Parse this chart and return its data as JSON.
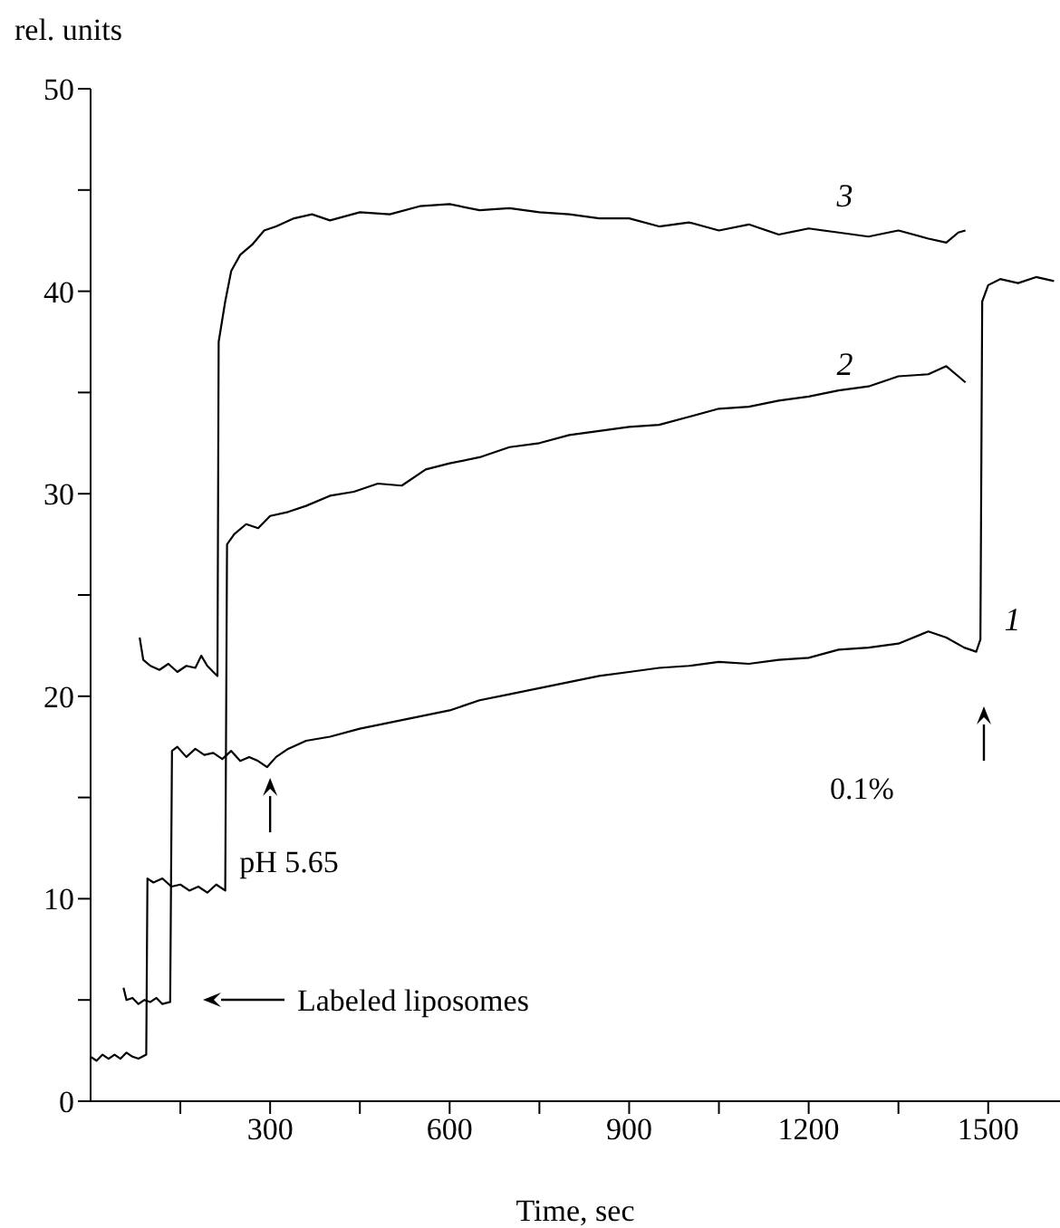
{
  "chart_data": {
    "type": "line",
    "xlabel": "Time, sec",
    "ylabel": "rel. units",
    "xlim": [
      0,
      1620
    ],
    "ylim": [
      0,
      50
    ],
    "xticks": [
      {
        "value": 150,
        "label": null
      },
      300,
      {
        "value": 450,
        "label": null
      },
      600,
      {
        "value": 750,
        "label": null
      },
      900,
      {
        "value": 1050,
        "label": null
      },
      1200,
      {
        "value": 1350,
        "label": null
      },
      1500
    ],
    "yticks": [
      0,
      {
        "value": 5,
        "label": null
      },
      10,
      {
        "value": 15,
        "label": null
      },
      20,
      {
        "value": 25,
        "label": null
      },
      30,
      {
        "value": 35,
        "label": null
      },
      40,
      {
        "value": 45,
        "label": null
      },
      50
    ],
    "grid": false,
    "legend": false,
    "annotations": [
      {
        "text": "pH 5.65",
        "x": 300,
        "y": 16.5
      },
      "Labeled liposomes",
      "0.1%"
    ],
    "series": [
      {
        "name": "1",
        "color": "#000000",
        "x": [
          55,
          60,
          70,
          80,
          90,
          100,
          110,
          120,
          133,
          136,
          145,
          160,
          175,
          190,
          205,
          220,
          235,
          250,
          265,
          280,
          295,
          310,
          330,
          360,
          400,
          450,
          500,
          550,
          600,
          650,
          700,
          750,
          800,
          850,
          900,
          950,
          1000,
          1050,
          1100,
          1150,
          1200,
          1250,
          1300,
          1350,
          1400,
          1430,
          1460,
          1480,
          1487,
          1490,
          1500,
          1520,
          1550,
          1580,
          1610
        ],
        "values": [
          5.6,
          5.0,
          5.1,
          4.8,
          5.0,
          4.9,
          5.1,
          4.8,
          4.9,
          17.3,
          17.5,
          17.0,
          17.4,
          17.1,
          17.2,
          16.9,
          17.3,
          16.8,
          17.0,
          16.8,
          16.5,
          17.0,
          17.4,
          17.8,
          18.0,
          18.4,
          18.7,
          19.0,
          19.3,
          19.8,
          20.1,
          20.4,
          20.7,
          21.0,
          21.2,
          21.4,
          21.5,
          21.7,
          21.6,
          21.8,
          21.9,
          22.3,
          22.4,
          22.6,
          23.2,
          22.9,
          22.4,
          22.2,
          22.8,
          39.5,
          40.3,
          40.6,
          40.4,
          40.7,
          40.5
        ]
      },
      {
        "name": "2",
        "color": "#000000",
        "x": [
          0,
          10,
          20,
          30,
          40,
          50,
          60,
          70,
          80,
          93,
          95,
          105,
          120,
          135,
          150,
          165,
          180,
          195,
          210,
          225,
          228,
          240,
          260,
          280,
          300,
          330,
          360,
          400,
          440,
          480,
          520,
          560,
          600,
          650,
          700,
          750,
          800,
          850,
          900,
          950,
          1000,
          1050,
          1100,
          1150,
          1200,
          1250,
          1300,
          1350,
          1400,
          1430,
          1450,
          1462
        ],
        "values": [
          2.2,
          2.0,
          2.3,
          2.1,
          2.3,
          2.1,
          2.4,
          2.2,
          2.1,
          2.3,
          11.0,
          10.8,
          11.0,
          10.6,
          10.7,
          10.4,
          10.6,
          10.3,
          10.7,
          10.4,
          27.5,
          28.0,
          28.5,
          28.3,
          28.9,
          29.1,
          29.4,
          29.9,
          30.1,
          30.5,
          30.4,
          31.2,
          31.5,
          31.8,
          32.3,
          32.5,
          32.9,
          33.1,
          33.3,
          33.4,
          33.8,
          34.2,
          34.3,
          34.6,
          34.8,
          35.1,
          35.3,
          35.8,
          35.9,
          36.3,
          35.8,
          35.5
        ]
      },
      {
        "name": "3",
        "color": "#000000",
        "x": [
          82,
          88,
          100,
          115,
          130,
          145,
          160,
          175,
          185,
          195,
          205,
          212,
          214,
          225,
          235,
          250,
          270,
          290,
          310,
          340,
          370,
          400,
          450,
          500,
          550,
          600,
          650,
          700,
          750,
          800,
          850,
          900,
          950,
          1000,
          1050,
          1100,
          1150,
          1200,
          1250,
          1300,
          1350,
          1400,
          1430,
          1450,
          1462
        ],
        "values": [
          22.9,
          21.8,
          21.5,
          21.3,
          21.6,
          21.2,
          21.5,
          21.4,
          22.0,
          21.5,
          21.2,
          21.0,
          37.5,
          39.5,
          41.0,
          41.8,
          42.3,
          43.0,
          43.2,
          43.6,
          43.8,
          43.5,
          43.9,
          43.8,
          44.2,
          44.3,
          44.0,
          44.1,
          43.9,
          43.8,
          43.6,
          43.6,
          43.2,
          43.4,
          43.0,
          43.3,
          42.8,
          43.1,
          42.9,
          42.7,
          43.0,
          42.6,
          42.4,
          42.9,
          43.0
        ]
      }
    ]
  }
}
